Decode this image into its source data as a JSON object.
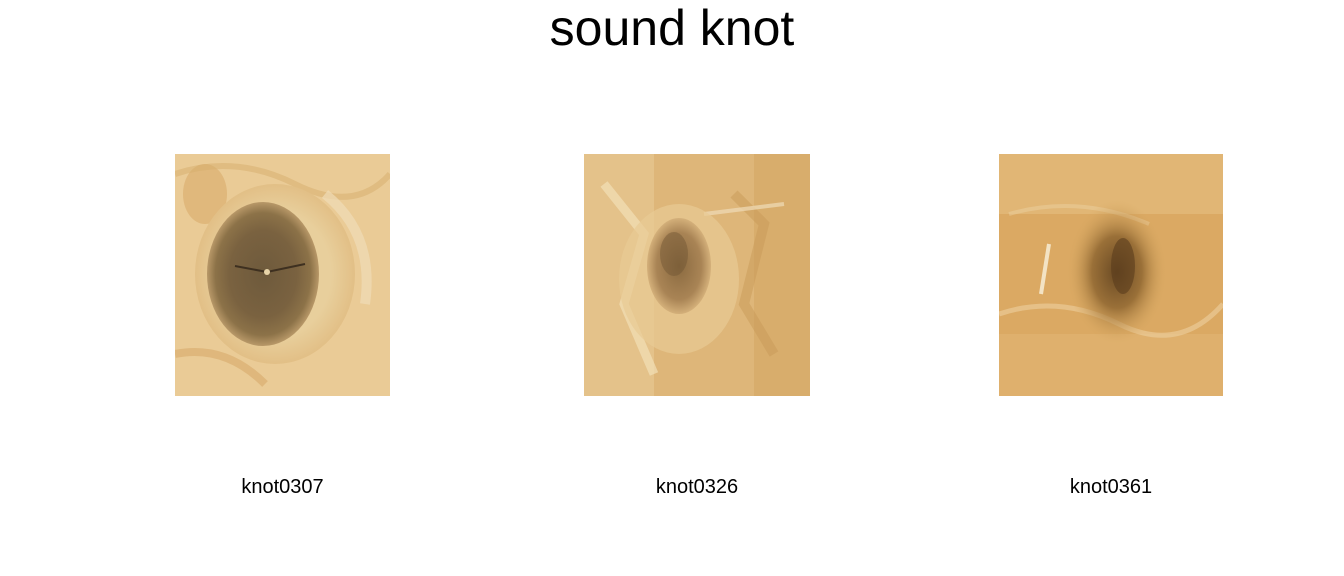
{
  "title": "sound knot",
  "panels": [
    {
      "label": "knot0307",
      "image": "wood-knot-photo"
    },
    {
      "label": "knot0326",
      "image": "wood-knot-photo"
    },
    {
      "label": "knot0361",
      "image": "wood-knot-photo"
    }
  ],
  "colors": {
    "background": "#ffffff",
    "text": "#000000",
    "wood_light": "#e9c88e",
    "wood_mid": "#d9ab63",
    "knot_dark": "#6b5434"
  }
}
